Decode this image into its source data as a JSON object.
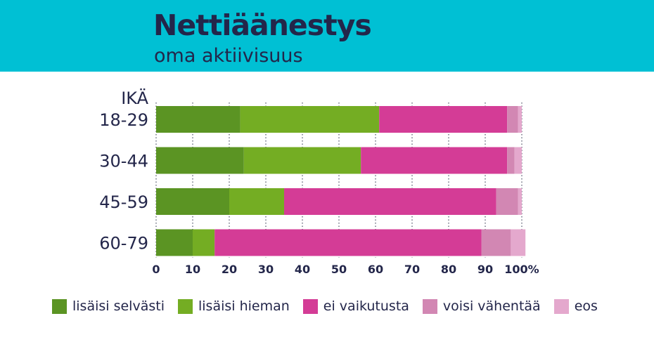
{
  "header": {
    "title": "Nettiäänestys",
    "subtitle": "oma aktiivisuus"
  },
  "chart_data": {
    "type": "bar",
    "orientation": "horizontal",
    "stacked": true,
    "category_axis_label": "IKÄ",
    "categories": [
      "18-29",
      "30-44",
      "45-59",
      "60-79"
    ],
    "series": [
      {
        "name": "lisäisi selvästi",
        "color": "#5b9423",
        "values": [
          23,
          24,
          20,
          10
        ]
      },
      {
        "name": "lisäisi hieman",
        "color": "#74ad23",
        "values": [
          38,
          32,
          15,
          6
        ]
      },
      {
        "name": "ei vaikutusta",
        "color": "#d43c96",
        "values": [
          35,
          40,
          58,
          73
        ]
      },
      {
        "name": "voisi vähentää",
        "color": "#d287b3",
        "values": [
          3,
          2,
          6,
          8
        ]
      },
      {
        "name": "eos",
        "color": "#e4a8cd",
        "values": [
          1,
          2,
          1,
          4
        ]
      }
    ],
    "x_ticks": [
      "0",
      "10",
      "20",
      "30",
      "40",
      "50",
      "60",
      "70",
      "80",
      "90",
      "100%"
    ],
    "xlim": [
      0,
      100
    ],
    "grid": "dotted-vertical",
    "legend_position": "bottom"
  }
}
